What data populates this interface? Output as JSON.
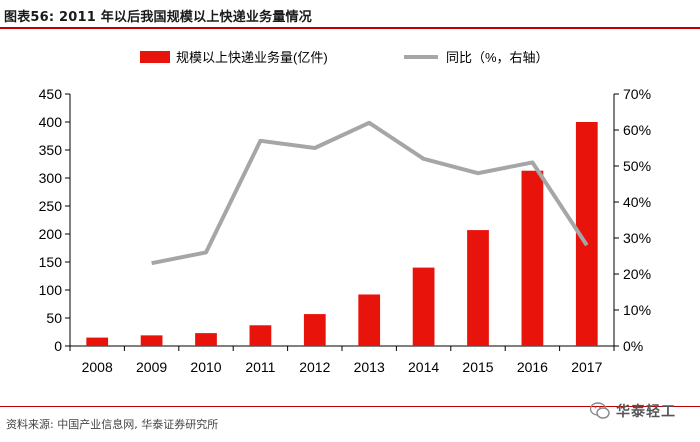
{
  "header": {
    "title": "图表56:   2011 年以后我国规模以上快递业务量情况"
  },
  "footer": {
    "source": "资料来源: 中国产业信息网, 华泰证券研究所",
    "brand": "华泰轻工"
  },
  "icons": {
    "brand": "wechat-icon"
  },
  "colors": {
    "bar": "#e8140c",
    "line": "#a6a6a6",
    "accent": "#c00000"
  },
  "chart_data": {
    "type": "bar+line",
    "categories": [
      "2008",
      "2009",
      "2010",
      "2011",
      "2012",
      "2013",
      "2014",
      "2015",
      "2016",
      "2017"
    ],
    "series": [
      {
        "name": "规模以上快递业务量(亿件)",
        "type": "bar",
        "axis": "left",
        "values": [
          15,
          19,
          23,
          37,
          57,
          92,
          140,
          207,
          313,
          400
        ]
      },
      {
        "name": "同比（%，右轴）",
        "type": "line",
        "axis": "right",
        "values": [
          null,
          23,
          26,
          57,
          55,
          62,
          52,
          48,
          51,
          28
        ]
      }
    ],
    "y_left": {
      "min": 0,
      "max": 450,
      "ticks": [
        "0",
        "50",
        "100",
        "150",
        "200",
        "250",
        "300",
        "350",
        "400",
        "450"
      ]
    },
    "y_right": {
      "min": 0,
      "max": 70,
      "ticks": [
        "0%",
        "10%",
        "20%",
        "30%",
        "40%",
        "50%",
        "60%",
        "70%"
      ]
    },
    "legend_position": "top",
    "grid": false
  }
}
